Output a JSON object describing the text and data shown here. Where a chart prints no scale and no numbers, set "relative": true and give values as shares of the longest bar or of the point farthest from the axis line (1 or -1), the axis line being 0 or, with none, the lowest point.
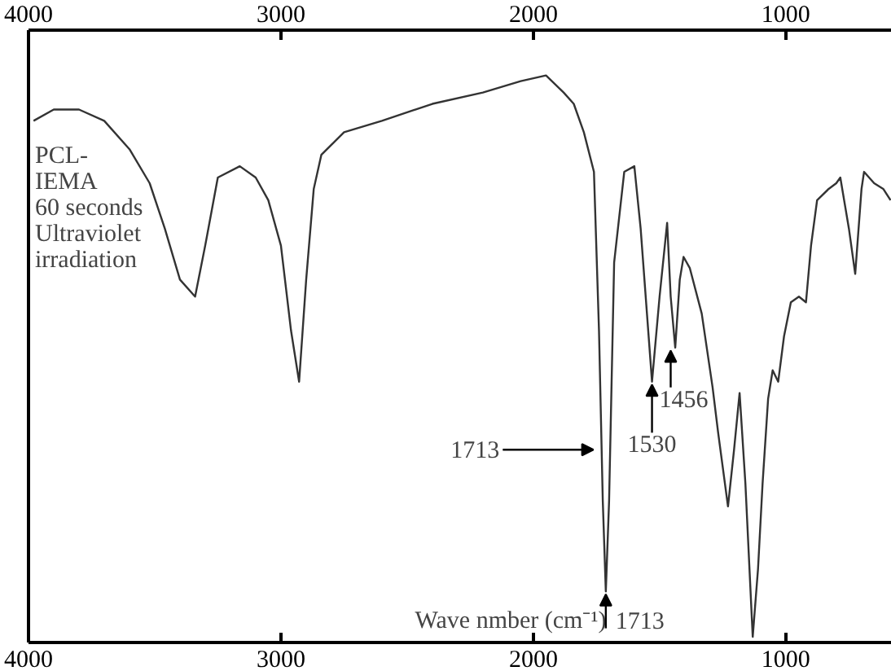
{
  "chart_data": {
    "type": "line",
    "relative": true,
    "xlabel": "Wave nmber (cm⁻¹)",
    "xlim": [
      4000,
      580
    ],
    "xticks": [
      4000,
      3000,
      2000,
      1000
    ],
    "x2lim": [
      4000,
      580
    ],
    "x2ticks": [
      4000,
      3000,
      2000,
      1000
    ],
    "tick_labels": "x",
    "grid": false,
    "x": [
      3980,
      3900,
      3800,
      3700,
      3600,
      3520,
      3460,
      3400,
      3340,
      3300,
      3250,
      3163,
      3100,
      3050,
      3000,
      2960,
      2928,
      2900,
      2870,
      2840,
      2750,
      2600,
      2400,
      2200,
      2050,
      1950,
      1880,
      1840,
      1800,
      1760,
      1740,
      1725,
      1713,
      1700,
      1680,
      1640,
      1600,
      1575,
      1545,
      1530,
      1500,
      1470,
      1456,
      1438,
      1420,
      1405,
      1380,
      1333,
      1290,
      1268,
      1229,
      1205,
      1183,
      1160,
      1131,
      1110,
      1092,
      1070,
      1052,
      1030,
      1007,
      980,
      948,
      920,
      900,
      876,
      830,
      800,
      784,
      750,
      725,
      700,
      690,
      650,
      614,
      585
    ],
    "series": [
      {
        "color": "#333333",
        "values": [
          0.92,
          0.94,
          0.94,
          0.92,
          0.87,
          0.81,
          0.73,
          0.64,
          0.61,
          0.7,
          0.82,
          0.84,
          0.82,
          0.78,
          0.7,
          0.55,
          0.46,
          0.64,
          0.8,
          0.86,
          0.9,
          0.92,
          0.95,
          0.97,
          0.99,
          1.0,
          0.97,
          0.95,
          0.9,
          0.83,
          0.55,
          0.25,
          0.09,
          0.25,
          0.67,
          0.83,
          0.84,
          0.73,
          0.55,
          0.46,
          0.61,
          0.74,
          0.61,
          0.52,
          0.64,
          0.68,
          0.66,
          0.58,
          0.45,
          0.37,
          0.24,
          0.34,
          0.44,
          0.28,
          0.01,
          0.13,
          0.28,
          0.43,
          0.48,
          0.46,
          0.54,
          0.6,
          0.61,
          0.6,
          0.7,
          0.78,
          0.8,
          0.81,
          0.82,
          0.73,
          0.65,
          0.8,
          0.83,
          0.81,
          0.8,
          0.78
        ]
      }
    ],
    "annotations": [
      "PCL-\nIEMA\n60 seconds\nUltraviolet\nirradiation",
      {
        "text": "1713",
        "x": 1745,
        "y": 0.34
      },
      {
        "text": "1713",
        "x": 1713,
        "y": 0.09
      },
      {
        "text": "1530",
        "x": 1530,
        "y": 0.46
      },
      {
        "text": "1456",
        "x": 1456,
        "y": 0.52
      }
    ]
  }
}
